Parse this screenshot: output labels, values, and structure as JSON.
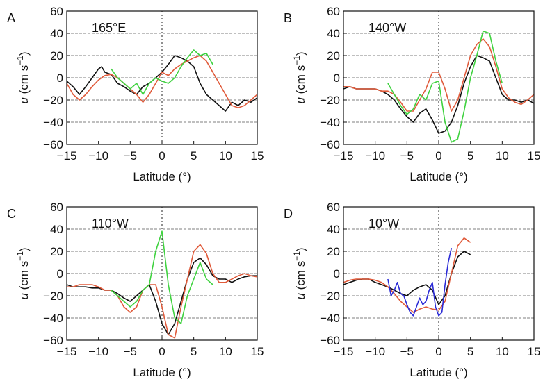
{
  "chart_data": [
    {
      "type": "line",
      "panel_letter": "A",
      "station": "165°E",
      "xlabel": "Latitude (°)",
      "ylabel_italic": "u",
      "ylabel_rest": " (cm s",
      "ylabel_sup": "−1",
      "ylabel_close": ")",
      "xlim": [
        -15,
        15
      ],
      "ylim": [
        -60,
        60
      ],
      "xticks": [
        "−15",
        "−10",
        "−5",
        "0",
        "5",
        "10",
        "15"
      ],
      "yticks": [
        "−60",
        "−40",
        "−20",
        "0",
        "20",
        "40",
        "60"
      ],
      "grid": "dashed horizontal",
      "series": [
        {
          "color": "#111111",
          "x": [
            -15,
            -14,
            -13,
            -12,
            -11,
            -10,
            -9.5,
            -9,
            -8,
            -7,
            -6,
            -5,
            -4,
            -3,
            -2,
            -1,
            0,
            1,
            2,
            3,
            4,
            5,
            6,
            7,
            8,
            9,
            10,
            11,
            12,
            13,
            14,
            15
          ],
          "y": [
            -3,
            -8,
            -15,
            -8,
            0,
            8,
            10,
            5,
            3,
            -5,
            -8,
            -12,
            -15,
            -8,
            -5,
            0,
            5,
            12,
            20,
            18,
            15,
            10,
            -5,
            -15,
            -20,
            -25,
            -30,
            -22,
            -25,
            -20,
            -22,
            -18
          ]
        },
        {
          "color": "#e05a3a",
          "x": [
            -15,
            -14,
            -13,
            -12,
            -11,
            -10,
            -9,
            -8,
            -7,
            -6,
            -5,
            -4,
            -3,
            -2,
            -1,
            0,
            1,
            2,
            3,
            4,
            5,
            6,
            7,
            8,
            9,
            10,
            11,
            12,
            13,
            14,
            15
          ],
          "y": [
            -5,
            -15,
            -20,
            -15,
            -8,
            -2,
            2,
            3,
            0,
            -5,
            -10,
            -15,
            -22,
            -15,
            -5,
            5,
            2,
            8,
            12,
            15,
            18,
            20,
            15,
            5,
            -5,
            -15,
            -25,
            -27,
            -25,
            -20,
            -15
          ]
        },
        {
          "color": "#3fd23f",
          "x": [
            -8,
            -7,
            -6,
            -5,
            -4,
            -3,
            -2,
            -1,
            0,
            1,
            2,
            3,
            4,
            5,
            6,
            7,
            8
          ],
          "y": [
            8,
            0,
            -5,
            -10,
            -5,
            -15,
            -5,
            0,
            -3,
            -5,
            0,
            10,
            18,
            25,
            20,
            22,
            12
          ]
        }
      ]
    },
    {
      "type": "line",
      "panel_letter": "B",
      "station": "140°W",
      "xlabel": "Latitude (°)",
      "ylabel_italic": "u",
      "ylabel_rest": " (cm s",
      "ylabel_sup": "−1",
      "ylabel_close": ")",
      "xlim": [
        -15,
        15
      ],
      "ylim": [
        -60,
        60
      ],
      "xticks": [
        "−15",
        "−10",
        "−5",
        "0",
        "5",
        "10",
        "15"
      ],
      "yticks": [
        "−60",
        "−40",
        "−20",
        "0",
        "20",
        "40",
        "60"
      ],
      "grid": "dashed horizontal",
      "series": [
        {
          "color": "#111111",
          "x": [
            -15,
            -14,
            -13,
            -12,
            -11,
            -10,
            -9,
            -8,
            -7,
            -6,
            -5,
            -4,
            -3,
            -2,
            -1,
            0,
            1,
            2,
            3,
            4,
            5,
            6,
            7,
            8,
            9,
            10,
            11,
            12,
            13,
            14,
            15
          ],
          "y": [
            -10,
            -8,
            -10,
            -10,
            -10,
            -10,
            -12,
            -15,
            -20,
            -28,
            -35,
            -40,
            -32,
            -28,
            -38,
            -50,
            -48,
            -40,
            -25,
            -5,
            10,
            20,
            18,
            15,
            0,
            -15,
            -20,
            -20,
            -22,
            -20,
            -23
          ]
        },
        {
          "color": "#e05a3a",
          "x": [
            -15,
            -14,
            -13,
            -12,
            -11,
            -10,
            -9,
            -8,
            -7,
            -6,
            -5,
            -4,
            -3,
            -2,
            -1,
            0,
            1,
            2,
            3,
            4,
            5,
            6,
            7,
            8,
            9,
            10,
            11,
            12,
            13,
            14,
            15
          ],
          "y": [
            -8,
            -8,
            -10,
            -10,
            -10,
            -10,
            -12,
            -12,
            -15,
            -22,
            -30,
            -30,
            -20,
            -10,
            5,
            5,
            -10,
            -30,
            -20,
            0,
            20,
            30,
            35,
            28,
            10,
            -10,
            -18,
            -22,
            -24,
            -20,
            -15
          ]
        },
        {
          "color": "#3fd23f",
          "x": [
            -8,
            -7,
            -6,
            -5,
            -4,
            -3,
            -2,
            -1,
            0,
            1,
            2,
            3,
            4,
            5,
            6,
            7,
            8,
            9,
            10
          ],
          "y": [
            -5,
            -15,
            -25,
            -33,
            -28,
            -15,
            -20,
            -5,
            -3,
            -40,
            -58,
            -55,
            -30,
            0,
            20,
            42,
            40,
            15,
            -5
          ]
        }
      ]
    },
    {
      "type": "line",
      "panel_letter": "C",
      "station": "110°W",
      "xlabel": "Latitude (°)",
      "ylabel_italic": "u",
      "ylabel_rest": " (cm s",
      "ylabel_sup": "−1",
      "ylabel_close": ")",
      "xlim": [
        -15,
        15
      ],
      "ylim": [
        -60,
        60
      ],
      "xticks": [
        "−15",
        "−10",
        "−5",
        "0",
        "5",
        "10",
        "15"
      ],
      "yticks": [
        "−60",
        "−40",
        "−20",
        "0",
        "20",
        "40",
        "60"
      ],
      "grid": "dashed horizontal",
      "series": [
        {
          "color": "#111111",
          "x": [
            -15,
            -14,
            -13,
            -12,
            -11,
            -10,
            -9,
            -8,
            -7,
            -6,
            -5,
            -4,
            -3,
            -2,
            -1,
            0,
            1,
            2,
            3,
            4,
            5,
            6,
            7,
            8,
            9,
            10,
            11,
            12,
            13,
            14,
            15
          ],
          "y": [
            -10,
            -12,
            -12,
            -12,
            -13,
            -13,
            -15,
            -15,
            -18,
            -22,
            -25,
            -20,
            -15,
            -10,
            -25,
            -45,
            -55,
            -45,
            -25,
            -5,
            10,
            14,
            8,
            -2,
            -5,
            -5,
            -8,
            -5,
            -3,
            -2,
            -2
          ]
        },
        {
          "color": "#e05a3a",
          "x": [
            -15,
            -14,
            -13,
            -12,
            -11,
            -10,
            -9,
            -8,
            -7,
            -6,
            -5,
            -4,
            -3,
            -2,
            -1,
            0,
            1,
            2,
            3,
            4,
            5,
            6,
            7,
            8,
            9,
            10,
            11,
            12,
            13,
            14,
            15
          ],
          "y": [
            -12,
            -12,
            -10,
            -10,
            -10,
            -12,
            -15,
            -15,
            -20,
            -30,
            -35,
            -30,
            -15,
            -10,
            -10,
            -30,
            -55,
            -58,
            -30,
            -5,
            20,
            26,
            18,
            0,
            -8,
            -8,
            -5,
            -2,
            0,
            -2,
            -3
          ]
        },
        {
          "color": "#3fd23f",
          "x": [
            -8,
            -7,
            -6,
            -5,
            -4,
            -3,
            -2,
            -1,
            0,
            1,
            2,
            3,
            4,
            5,
            6,
            7,
            8
          ],
          "y": [
            -15,
            -20,
            -25,
            -30,
            -25,
            -15,
            -10,
            20,
            38,
            -10,
            -40,
            -45,
            -20,
            -5,
            10,
            -5,
            -10
          ]
        }
      ]
    },
    {
      "type": "line",
      "panel_letter": "D",
      "station": "10°W",
      "xlabel": "Latitude (°)",
      "ylabel_italic": "u",
      "ylabel_rest": " (cm s",
      "ylabel_sup": "−1",
      "ylabel_close": ")",
      "xlim": [
        -15,
        15
      ],
      "ylim": [
        -60,
        60
      ],
      "xticks": [
        "−15",
        "−10",
        "−5",
        "0",
        "5",
        "10",
        "15"
      ],
      "yticks": [
        "−60",
        "−40",
        "−20",
        "0",
        "20",
        "40",
        "60"
      ],
      "grid": "dashed horizontal",
      "series": [
        {
          "color": "#111111",
          "x": [
            -15,
            -14,
            -13,
            -12,
            -11,
            -10,
            -9,
            -8,
            -7,
            -6,
            -5,
            -4,
            -3,
            -2,
            -1,
            0,
            1,
            2,
            3,
            4,
            5
          ],
          "y": [
            -10,
            -8,
            -6,
            -5,
            -5,
            -8,
            -10,
            -12,
            -15,
            -18,
            -20,
            -15,
            -12,
            -10,
            -15,
            -28,
            -20,
            0,
            15,
            20,
            17
          ]
        },
        {
          "color": "#e05a3a",
          "x": [
            -15,
            -14,
            -13,
            -12,
            -11,
            -10,
            -9,
            -8,
            -7,
            -6,
            -5,
            -4,
            -3,
            -2,
            -1,
            0,
            1,
            2,
            3,
            4,
            5
          ],
          "y": [
            -8,
            -6,
            -5,
            -5,
            -5,
            -6,
            -8,
            -12,
            -18,
            -25,
            -30,
            -35,
            -32,
            -30,
            -32,
            -33,
            -25,
            0,
            25,
            32,
            28
          ]
        },
        {
          "color": "#2b2bd6",
          "x": [
            -8,
            -7.5,
            -7,
            -6.5,
            -6,
            -5.5,
            -5,
            -4.5,
            -4,
            -3.5,
            -3,
            -2.5,
            -2,
            -1.5,
            -1,
            -0.5,
            0,
            0.5,
            1,
            1.5,
            2
          ],
          "y": [
            -5,
            -20,
            -15,
            -8,
            -18,
            -20,
            -28,
            -35,
            -38,
            -30,
            -22,
            -28,
            -25,
            -15,
            -8,
            -30,
            -38,
            -35,
            -10,
            10,
            23
          ]
        }
      ]
    }
  ]
}
